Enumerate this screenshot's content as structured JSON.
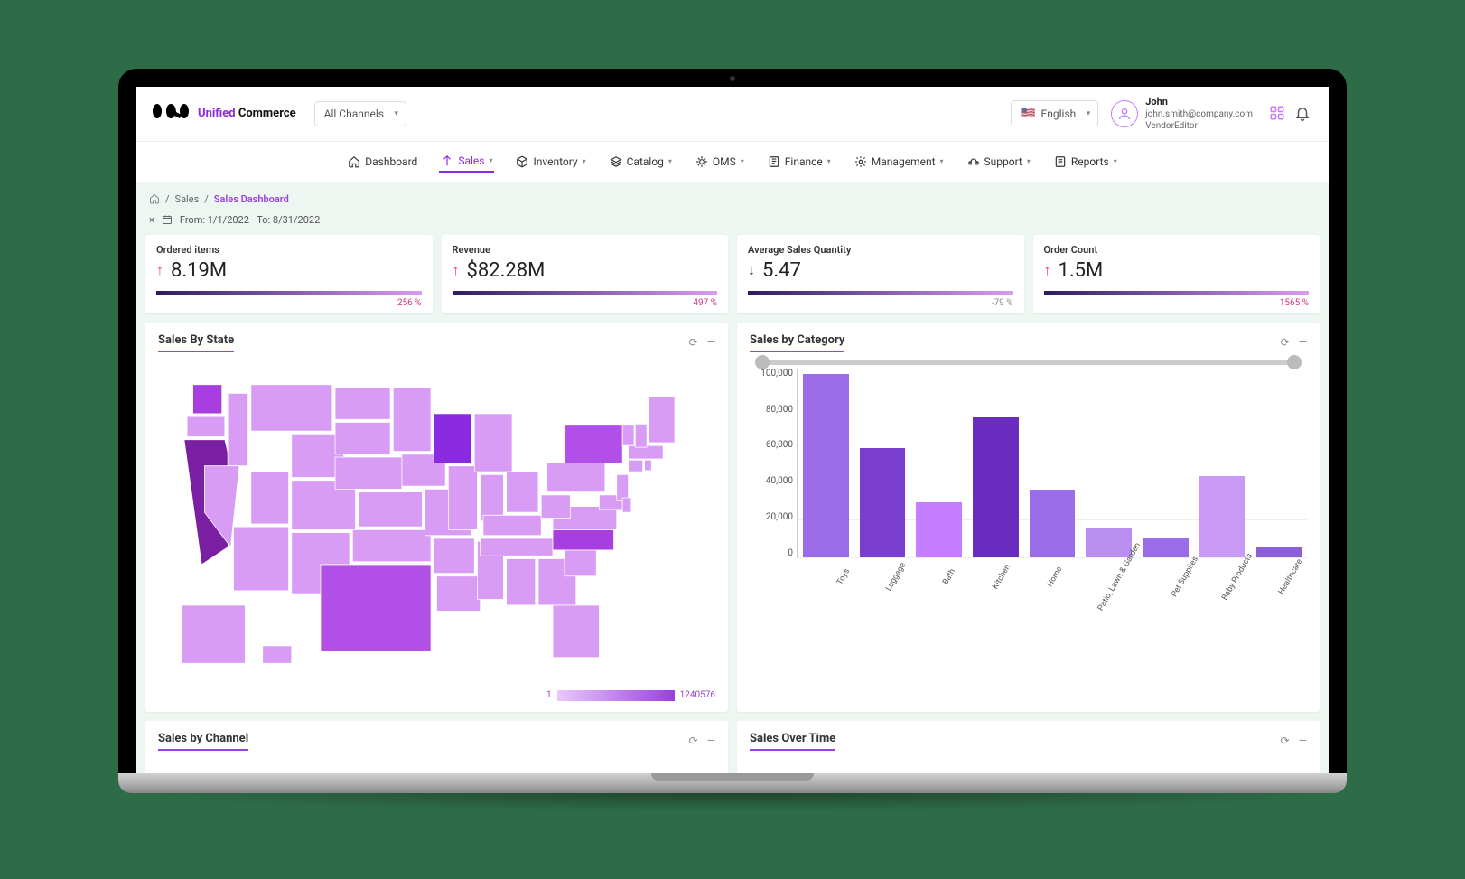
{
  "brand": {
    "part1": "Unified",
    "part2": "Commerce"
  },
  "channel_selector": {
    "label": "All Channels"
  },
  "language_selector": {
    "flag": "🇺🇸",
    "label": "English"
  },
  "user": {
    "name": "John",
    "email": "john.smith@company.com",
    "role": "VendorEditor"
  },
  "nav": [
    {
      "label": "Dashboard"
    },
    {
      "label": "Sales",
      "active": true
    },
    {
      "label": "Inventory"
    },
    {
      "label": "Catalog"
    },
    {
      "label": "OMS"
    },
    {
      "label": "Finance"
    },
    {
      "label": "Management"
    },
    {
      "label": "Support"
    },
    {
      "label": "Reports"
    }
  ],
  "breadcrumb": {
    "sep": "/",
    "l1": "Sales",
    "l2": "Sales Dashboard"
  },
  "filter": {
    "label": "From: 1/1/2022 -  To: 8/31/2022"
  },
  "kpis": [
    {
      "label": "Ordered items",
      "value": "8.19M",
      "direction": "up",
      "percent": "256 %",
      "pct_neg": false,
      "bar_fill": 75
    },
    {
      "label": "Revenue",
      "value": "$82.28M",
      "direction": "up",
      "percent": "497 %",
      "pct_neg": false,
      "bar_fill": 85
    },
    {
      "label": "Average Sales Quantity",
      "value": "5.47",
      "direction": "down",
      "percent": "-79 %",
      "pct_neg": true,
      "bar_fill": 70
    },
    {
      "label": "Order Count",
      "value": "1.5M",
      "direction": "up",
      "percent": "1565 %",
      "pct_neg": false,
      "bar_fill": 60
    }
  ],
  "panels": {
    "map": {
      "title": "Sales By State",
      "legend": {
        "min": "1",
        "max": "1240576"
      },
      "scale_low": "#e9c9fb",
      "scale_high": "#9a3fe0",
      "highlight_states": {
        "CA": "#7b1fa2",
        "TX": "#b14fe8",
        "NC": "#a83de0",
        "WA": "#a83de0",
        "WI": "#8a2be2",
        "NY": "#b14fe8"
      }
    },
    "bar": {
      "title": "Sales by Category",
      "type": "bar",
      "ylim": [
        0,
        100000
      ],
      "ytick_step": 20000,
      "yticks": [
        "100,000",
        "80,000",
        "60,000",
        "40,000",
        "20,000",
        "0"
      ],
      "grid_color": "#eeeeee",
      "axis_color": "#cccccc",
      "background_color": "#ffffff",
      "label_fontsize": 9,
      "bar_width_pct": 80,
      "categories": [
        "Toys",
        "Luggage",
        "Bath",
        "Kitchen",
        "Home",
        "Patio, Lawn & Garden",
        "Pet Supplies",
        "Baby Products",
        "Healthcare"
      ],
      "values": [
        97000,
        58000,
        29000,
        74000,
        36000,
        15000,
        10000,
        43000,
        5000
      ],
      "bar_colors": [
        "#9a6ce8",
        "#7a3fcf",
        "#c77dff",
        "#6a2bbf",
        "#9a6ce8",
        "#b98ef0",
        "#9a6ce8",
        "#c89af5",
        "#8a5fd8"
      ]
    },
    "channel": {
      "title": "Sales by Channel"
    },
    "time": {
      "title": "Sales Over Time"
    }
  },
  "colors": {
    "accent": "#9a3fe0",
    "page_bg": "#eef6f2",
    "kpi_grad_start": "#2d1b5e",
    "kpi_grad_end": "#d89cf5"
  }
}
